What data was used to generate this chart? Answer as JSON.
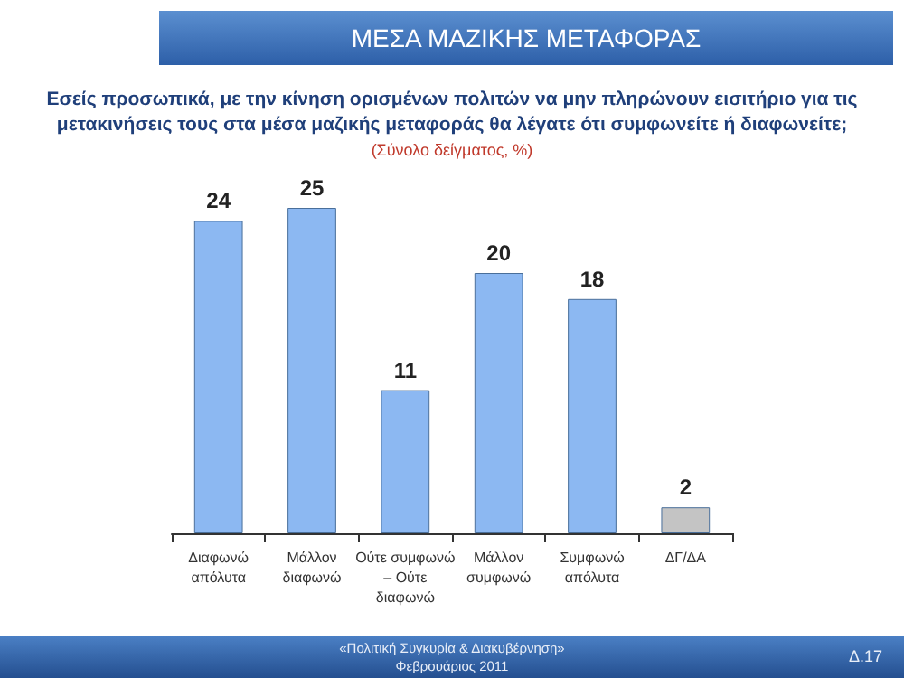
{
  "chart_data": {
    "type": "bar",
    "title": "ΜΕΣΑ ΜΑΖΙΚΗΣ ΜΕΤΑΦΟΡΑΣ",
    "subtitle": "Εσείς προσωπικά, με την κίνηση ορισμένων πολιτών να μην πληρώνουν εισιτήριο για τις μετακινήσεις τους στα μέσα μαζικής μεταφοράς θα λέγατε ότι συμφωνείτε ή διαφωνείτε;",
    "annotations": [
      "(Σύνολο δείγματος, %)",
      "«Πολιτική Συγκυρία & Διακυβέρνηση»",
      "Φεβρουάριος 2011",
      "Δ.17"
    ],
    "categories": [
      "Διαφωνώ απόλυτα",
      "Μάλλον διαφωνώ",
      "Ούτε συμφωνώ – Ούτε διαφωνώ",
      "Μάλλον συμφωνώ",
      "Συμφωνώ απόλυτα",
      "ΔΓ/ΔΑ"
    ],
    "values": [
      24,
      25,
      11,
      20,
      18,
      2
    ],
    "colors": [
      "#8cb8f2",
      "#8cb8f2",
      "#8cb8f2",
      "#8cb8f2",
      "#8cb8f2",
      "#c4c4c4"
    ],
    "data_labels": true
  }
}
